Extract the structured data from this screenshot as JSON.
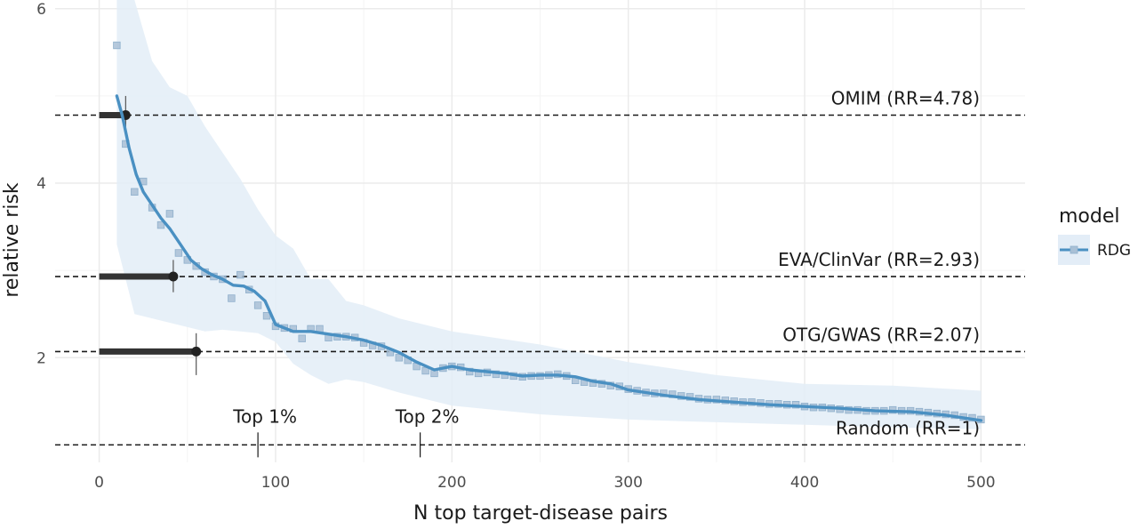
{
  "chart_data": {
    "type": "line",
    "xlabel": "N top target-disease pairs",
    "ylabel": "relative risk",
    "xlim": [
      -25,
      525
    ],
    "ylim": [
      0.8,
      6.1
    ],
    "x_ticks": [
      0,
      100,
      200,
      300,
      400,
      500
    ],
    "y_ticks": [
      2,
      4,
      6
    ],
    "grid": true,
    "legend": {
      "title": "model",
      "position": "right",
      "entries": [
        {
          "label": "RDG",
          "color": "#5b9bc8"
        }
      ]
    },
    "colors": {
      "line": "#4a90c2",
      "band": "#e3edf7",
      "points": "#a9c0d6",
      "reference": "#1a1a1a",
      "grid": "#ebebeb"
    },
    "series": [
      {
        "name": "RDG",
        "smooth": {
          "x": [
            10,
            13,
            17,
            21,
            25,
            30,
            35,
            40,
            46,
            52,
            58,
            64,
            70,
            76,
            82,
            88,
            94,
            100,
            110,
            120,
            130,
            140,
            150,
            160,
            170,
            180,
            190,
            200,
            210,
            220,
            230,
            240,
            250,
            260,
            270,
            280,
            290,
            300,
            320,
            340,
            360,
            380,
            400,
            420,
            440,
            460,
            480,
            500
          ],
          "y": [
            5.0,
            4.78,
            4.4,
            4.1,
            3.9,
            3.75,
            3.6,
            3.48,
            3.3,
            3.12,
            3.02,
            2.95,
            2.9,
            2.83,
            2.82,
            2.76,
            2.65,
            2.38,
            2.3,
            2.3,
            2.27,
            2.24,
            2.2,
            2.14,
            2.06,
            1.95,
            1.86,
            1.9,
            1.86,
            1.84,
            1.82,
            1.79,
            1.8,
            1.8,
            1.78,
            1.73,
            1.7,
            1.63,
            1.57,
            1.52,
            1.49,
            1.46,
            1.44,
            1.42,
            1.39,
            1.38,
            1.34,
            1.28
          ]
        },
        "band": {
          "x": [
            10,
            20,
            30,
            40,
            50,
            60,
            70,
            80,
            90,
            100,
            110,
            120,
            130,
            140,
            150,
            170,
            200,
            250,
            300,
            350,
            400,
            450,
            500
          ],
          "lower": [
            3.3,
            2.5,
            2.45,
            2.4,
            2.35,
            2.3,
            2.32,
            2.3,
            2.28,
            2.18,
            1.93,
            1.8,
            1.7,
            1.75,
            1.72,
            1.6,
            1.45,
            1.35,
            1.29,
            1.26,
            1.23,
            1.2,
            1.18
          ],
          "upper": [
            6.1,
            6.1,
            5.4,
            5.1,
            5.0,
            4.65,
            4.35,
            4.05,
            3.7,
            3.4,
            3.25,
            2.9,
            2.9,
            2.65,
            2.6,
            2.45,
            2.3,
            2.15,
            1.95,
            1.8,
            1.7,
            1.68,
            1.62
          ]
        },
        "points": {
          "x": [
            10,
            15,
            20,
            25,
            30,
            35,
            40,
            45,
            50,
            55,
            60,
            65,
            70,
            75,
            80,
            85,
            90,
            95,
            100,
            105,
            110,
            115,
            120,
            125,
            130,
            135,
            140,
            145,
            150,
            155,
            160,
            165,
            170,
            175,
            180,
            185,
            190,
            195,
            200,
            205,
            210,
            215,
            220,
            225,
            230,
            235,
            240,
            245,
            250,
            255,
            260,
            265,
            270,
            275,
            280,
            285,
            290,
            295,
            300,
            305,
            310,
            315,
            320,
            325,
            330,
            335,
            340,
            345,
            350,
            355,
            360,
            365,
            370,
            375,
            380,
            385,
            390,
            395,
            400,
            405,
            410,
            415,
            420,
            425,
            430,
            435,
            440,
            445,
            450,
            455,
            460,
            465,
            470,
            475,
            480,
            485,
            490,
            495,
            500
          ],
          "y": [
            5.58,
            4.45,
            3.9,
            4.02,
            3.72,
            3.52,
            3.65,
            3.2,
            3.12,
            3.05,
            2.98,
            2.93,
            2.9,
            2.68,
            2.95,
            2.78,
            2.6,
            2.48,
            2.36,
            2.34,
            2.33,
            2.22,
            2.33,
            2.33,
            2.23,
            2.24,
            2.24,
            2.23,
            2.17,
            2.14,
            2.13,
            2.06,
            2.0,
            1.97,
            1.9,
            1.85,
            1.82,
            1.88,
            1.9,
            1.89,
            1.84,
            1.82,
            1.83,
            1.81,
            1.8,
            1.79,
            1.78,
            1.79,
            1.79,
            1.8,
            1.81,
            1.79,
            1.74,
            1.72,
            1.71,
            1.7,
            1.68,
            1.67,
            1.64,
            1.62,
            1.6,
            1.59,
            1.59,
            1.58,
            1.56,
            1.55,
            1.53,
            1.52,
            1.52,
            1.51,
            1.5,
            1.49,
            1.49,
            1.48,
            1.47,
            1.47,
            1.46,
            1.46,
            1.44,
            1.43,
            1.43,
            1.42,
            1.41,
            1.4,
            1.4,
            1.39,
            1.39,
            1.39,
            1.4,
            1.39,
            1.39,
            1.38,
            1.37,
            1.36,
            1.35,
            1.34,
            1.32,
            1.31,
            1.29
          ]
        }
      }
    ],
    "reference_lines": [
      {
        "label": "OMIM (RR=4.78)",
        "y": 4.78,
        "seg_x": [
          0,
          15
        ],
        "marker_x": 15,
        "ci": [
          4.55,
          5.0
        ]
      },
      {
        "label": "EVA/ClinVar (RR=2.93)",
        "y": 2.93,
        "seg_x": [
          0,
          42
        ],
        "marker_x": 42,
        "ci": [
          2.75,
          3.12
        ]
      },
      {
        "label": "OTG/GWAS (RR=2.07)",
        "y": 2.07,
        "seg_x": [
          0,
          55
        ],
        "marker_x": 55,
        "ci": [
          1.8,
          2.28
        ]
      },
      {
        "label": "Random (RR=1)",
        "y": 1.0
      }
    ],
    "annotations": [
      {
        "label": "Top 1%",
        "x": 90
      },
      {
        "label": "Top 2%",
        "x": 182
      }
    ]
  }
}
